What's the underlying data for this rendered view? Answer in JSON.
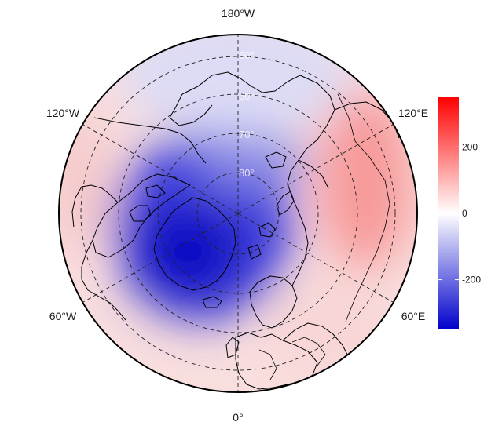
{
  "map": {
    "projection": "north-polar-stereographic",
    "center": "North Pole",
    "longitude_labels": [
      {
        "text": "180°W",
        "lon": 180
      },
      {
        "text": "120°W",
        "lon": -120
      },
      {
        "text": "120°E",
        "lon": 120
      },
      {
        "text": "60°W",
        "lon": -60
      },
      {
        "text": "60°E",
        "lon": 60
      },
      {
        "text": "0°",
        "lon": 0
      }
    ],
    "latitude_labels": [
      "50°",
      "60°",
      "70°",
      "80°"
    ],
    "graticule": {
      "latitudes": [
        50,
        60,
        70,
        80
      ],
      "longitudes": [
        0,
        60,
        120,
        180,
        240,
        300
      ],
      "style": "dashed"
    },
    "field_description": "diverging anomaly field; strongest negative over Greenland, positive over Eurasia/Siberia",
    "colors": {
      "low": "#0000cc",
      "mid": "#ffffff",
      "high": "#ff0000",
      "coast": "#000000"
    }
  },
  "colorbar": {
    "range": [
      -350,
      350
    ],
    "ticks": [
      {
        "value": 200,
        "label": "200"
      },
      {
        "value": 0,
        "label": "0"
      },
      {
        "value": -200,
        "label": "-200"
      }
    ],
    "colors": {
      "top": "#ff0000",
      "middle": "#ffffff",
      "bottom": "#0000cc"
    }
  }
}
